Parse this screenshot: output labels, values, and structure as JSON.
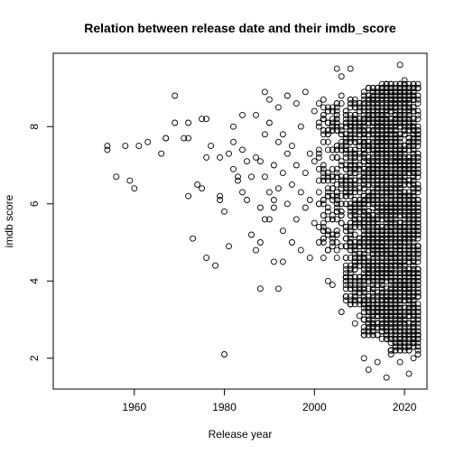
{
  "chart_data": {
    "type": "scatter",
    "title": "Relation between release date and their imdb_score",
    "xlabel": "Release year",
    "ylabel": "imdb score",
    "xlim": [
      1942,
      2025
    ],
    "ylim": [
      1.2,
      9.9
    ],
    "xticks": [
      1960,
      1980,
      2000,
      2020
    ],
    "yticks": [
      2,
      4,
      6,
      8
    ],
    "grid": false,
    "legend": "none",
    "marker": "open-circle",
    "points": [
      [
        1954,
        7.5
      ],
      [
        1954,
        7.4
      ],
      [
        1956,
        6.7
      ],
      [
        1958,
        7.5
      ],
      [
        1959,
        6.6
      ],
      [
        1960,
        6.4
      ],
      [
        1961,
        7.5
      ],
      [
        1963,
        7.6
      ],
      [
        1966,
        7.3
      ],
      [
        1967,
        7.7
      ],
      [
        1967,
        7.7
      ],
      [
        1969,
        8.1
      ],
      [
        1969,
        8.8
      ],
      [
        1971,
        7.7
      ],
      [
        1972,
        7.7
      ],
      [
        1972,
        8.1
      ],
      [
        1972,
        6.2
      ],
      [
        1973,
        5.1
      ],
      [
        1974,
        6.5
      ],
      [
        1975,
        6.4
      ],
      [
        1975,
        8.2
      ],
      [
        1976,
        8.2
      ],
      [
        1976,
        7.2
      ],
      [
        1976,
        4.6
      ],
      [
        1977,
        7.5
      ],
      [
        1978,
        4.4
      ],
      [
        1979,
        7.2
      ],
      [
        1979,
        6.2
      ],
      [
        1979,
        6.1
      ],
      [
        1980,
        2.1
      ],
      [
        1980,
        5.8
      ],
      [
        1981,
        7.3
      ],
      [
        1981,
        4.9
      ],
      [
        1982,
        6.9
      ],
      [
        1982,
        7.6
      ],
      [
        1982,
        8.0
      ],
      [
        1983,
        6.6
      ],
      [
        1983,
        6.7
      ],
      [
        1984,
        6.3
      ],
      [
        1984,
        8.3
      ],
      [
        1984,
        7.4
      ],
      [
        1985,
        6.1
      ],
      [
        1985,
        7.1
      ],
      [
        1986,
        5.2
      ],
      [
        1986,
        6.7
      ],
      [
        1987,
        8.3
      ],
      [
        1987,
        7.2
      ],
      [
        1987,
        4.8
      ],
      [
        1988,
        3.8
      ],
      [
        1988,
        5.9
      ],
      [
        1988,
        5.0
      ],
      [
        1988,
        7.1
      ],
      [
        1989,
        8.9
      ],
      [
        1989,
        5.6
      ],
      [
        1989,
        6.7
      ],
      [
        1989,
        7.8
      ],
      [
        1990,
        5.6
      ],
      [
        1990,
        6.3
      ],
      [
        1990,
        8.1
      ],
      [
        1990,
        8.7
      ],
      [
        1991,
        4.5
      ],
      [
        1991,
        6.1
      ],
      [
        1991,
        7.0
      ],
      [
        1991,
        5.9
      ],
      [
        1992,
        3.8
      ],
      [
        1992,
        6.4
      ],
      [
        1992,
        7.6
      ],
      [
        1992,
        8.5
      ],
      [
        1993,
        4.5
      ],
      [
        1993,
        6.8
      ],
      [
        1993,
        7.8
      ],
      [
        1993,
        5.3
      ],
      [
        1994,
        6.0
      ],
      [
        1994,
        7.3
      ],
      [
        1994,
        8.8
      ],
      [
        1995,
        5.0
      ],
      [
        1995,
        6.5
      ],
      [
        1995,
        7.5
      ],
      [
        1996,
        5.6
      ],
      [
        1996,
        8.6
      ],
      [
        1996,
        7.0
      ],
      [
        1997,
        6.3
      ],
      [
        1997,
        8.0
      ],
      [
        1997,
        4.8
      ],
      [
        1998,
        5.9
      ],
      [
        1998,
        6.8
      ],
      [
        1998,
        8.9
      ],
      [
        1999,
        4.6
      ],
      [
        1999,
        7.3
      ],
      [
        1999,
        6.1
      ],
      [
        2000,
        8.4
      ],
      [
        2000,
        5.5
      ],
      [
        2000,
        7.1
      ],
      [
        2001,
        5.0
      ],
      [
        2001,
        8.1
      ],
      [
        2001,
        6.6
      ],
      [
        2002,
        4.6
      ],
      [
        2002,
        7.6
      ],
      [
        2002,
        8.7
      ],
      [
        2003,
        4.0
      ],
      [
        2003,
        6.2
      ],
      [
        2003,
        5.3
      ],
      [
        2004,
        7.9
      ],
      [
        2004,
        3.9
      ],
      [
        2004,
        6.9
      ],
      [
        2005,
        9.5
      ],
      [
        2005,
        5.8
      ],
      [
        2005,
        4.6
      ],
      [
        2006,
        9.3
      ],
      [
        2006,
        8.8
      ],
      [
        2006,
        3.2
      ],
      [
        2007,
        8.4
      ],
      [
        2007,
        4.3
      ],
      [
        2007,
        3.6
      ],
      [
        2008,
        9.5
      ],
      [
        2008,
        7.6
      ],
      [
        2008,
        3.4
      ],
      [
        2009,
        4.1
      ],
      [
        2009,
        2.9
      ],
      [
        2010,
        7.2
      ],
      [
        2010,
        3.1
      ],
      [
        2011,
        3.6
      ],
      [
        2011,
        2.0
      ],
      [
        2012,
        1.7
      ],
      [
        2013,
        3.5
      ],
      [
        2014,
        1.9
      ],
      [
        2015,
        2.7
      ],
      [
        2016,
        1.5
      ],
      [
        2017,
        2.1
      ],
      [
        2018,
        2.3
      ],
      [
        2019,
        9.6
      ],
      [
        2019,
        1.9
      ],
      [
        2020,
        9.2
      ],
      [
        2021,
        1.6
      ],
      [
        2022,
        2.0
      ],
      [
        2023,
        2.1
      ],
      [
        2022,
        2.5
      ],
      [
        2023,
        9.1
      ]
    ],
    "dense_bands": [
      {
        "x_range": [
          2001,
          2007
        ],
        "y_range": [
          4.8,
          8.6
        ],
        "count": 180
      },
      {
        "x_range": [
          2007,
          2011
        ],
        "y_range": [
          3.4,
          8.8
        ],
        "count": 380
      },
      {
        "x_range": [
          2011,
          2014
        ],
        "y_range": [
          2.6,
          9.0
        ],
        "count": 520
      },
      {
        "x_range": [
          2014,
          2017
        ],
        "y_range": [
          2.5,
          9.1
        ],
        "count": 700
      },
      {
        "x_range": [
          2017,
          2023
        ],
        "y_range": [
          2.2,
          9.1
        ],
        "count": 1400
      }
    ]
  }
}
